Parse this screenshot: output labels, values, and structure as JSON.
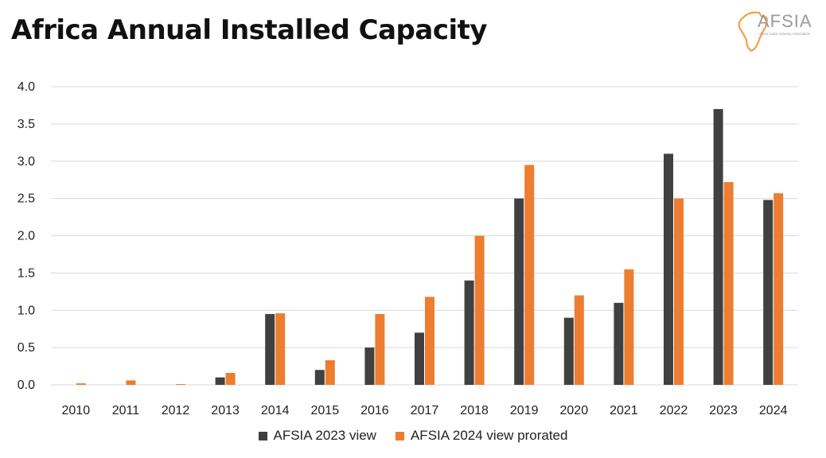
{
  "header": {
    "title": "Africa Annual Installed Capacity",
    "logo_text": "AFSIA",
    "logo_subtitle": "Africa Solar Industry Association"
  },
  "colors": {
    "series_2023": "#404040",
    "series_2024": "#ED7D31",
    "grid": "#D9D9D9",
    "logo": "#F0A14A"
  },
  "icons": {
    "logo": "africa-outline-icon"
  },
  "chart_data": {
    "type": "bar",
    "title": "Africa Annual Installed Capacity",
    "xlabel": "",
    "ylabel": "",
    "categories": [
      "2010",
      "2011",
      "2012",
      "2013",
      "2014",
      "2015",
      "2016",
      "2017",
      "2018",
      "2019",
      "2020",
      "2021",
      "2022",
      "2023",
      "2024"
    ],
    "series": [
      {
        "name": "AFSIA 2023 view",
        "color": "#404040",
        "values": [
          0,
          0,
          0,
          0.1,
          0.95,
          0.2,
          0.5,
          0.7,
          1.4,
          2.5,
          0.9,
          1.1,
          3.1,
          3.7,
          2.48
        ]
      },
      {
        "name": "AFSIA 2024 view prorated",
        "color": "#ED7D31",
        "values": [
          0.02,
          0.06,
          0.01,
          0.16,
          0.96,
          0.33,
          0.95,
          1.18,
          2.0,
          2.95,
          1.2,
          1.55,
          2.5,
          2.72,
          2.57
        ]
      }
    ],
    "ylim": [
      0,
      4.0
    ],
    "yticks": [
      "0.0",
      "0.5",
      "1.0",
      "1.5",
      "2.0",
      "2.5",
      "3.0",
      "3.5",
      "4.0"
    ],
    "grid": true,
    "legend": "bottom-center"
  }
}
